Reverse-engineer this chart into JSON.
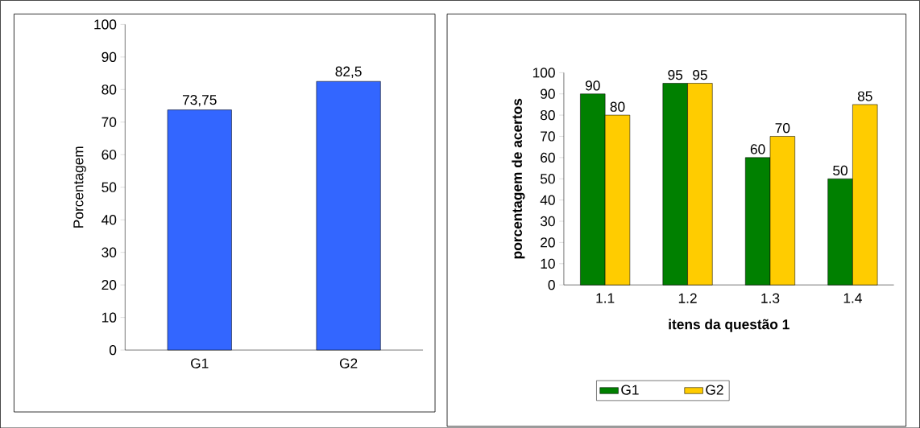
{
  "chart_data": [
    {
      "type": "bar",
      "ylabel": "Porcentagem",
      "categories": [
        "G1",
        "G2"
      ],
      "values": [
        73.75,
        82.5
      ],
      "color": "#3366ff",
      "value_labels": [
        "73,75",
        "82,5"
      ],
      "ylim": [
        0,
        100
      ],
      "yticks": [
        0,
        10,
        20,
        30,
        40,
        50,
        60,
        70,
        80,
        90,
        100
      ]
    },
    {
      "type": "bar",
      "ylabel": "porcentagem de acertos",
      "xlabel": "itens da questão 1",
      "categories": [
        "1.1",
        "1.2",
        "1.3",
        "1.4"
      ],
      "series": [
        {
          "name": "G1",
          "color": "#008000",
          "values": [
            90,
            95,
            60,
            50
          ],
          "value_labels": [
            "90",
            "95",
            "60",
            "50"
          ]
        },
        {
          "name": "G2",
          "color": "#ffcc00",
          "values": [
            80,
            95,
            70,
            85
          ],
          "value_labels": [
            "80",
            "95",
            "70",
            "85"
          ]
        }
      ],
      "ylim": [
        0,
        100
      ],
      "yticks": [
        0,
        10,
        20,
        30,
        40,
        50,
        60,
        70,
        80,
        90,
        100
      ],
      "legend": "bottom"
    }
  ]
}
